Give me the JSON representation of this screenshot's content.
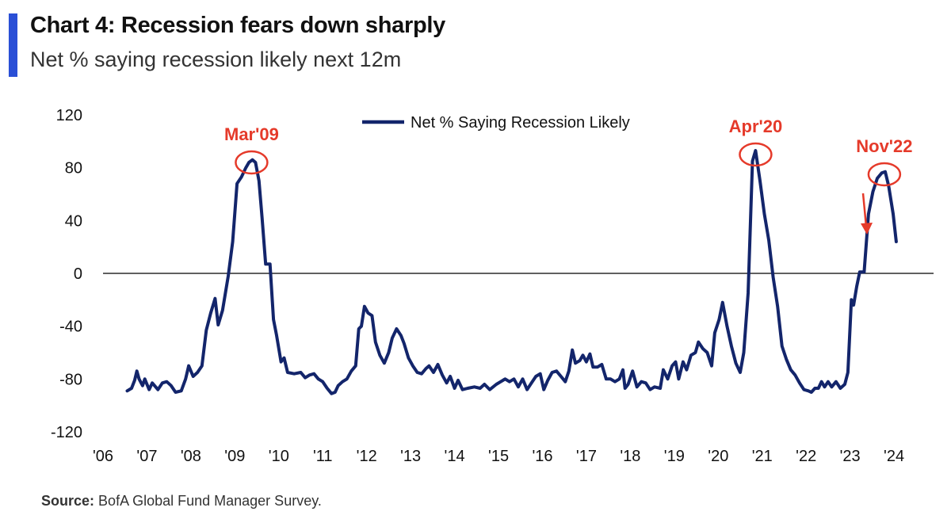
{
  "header": {
    "title": "Chart 4: Recession fears down sharply",
    "subtitle": "Net % saying recession likely next 12m"
  },
  "footer": {
    "source_label": "Source:",
    "source_text": "BofA Global Fund Manager Survey."
  },
  "colors": {
    "accent": "#2a4fd6",
    "series": "#13256b",
    "annotation": "#e53a2a",
    "axis": "#000000"
  },
  "chart_data": {
    "type": "line",
    "title": "Chart 4: Recession fears down sharply",
    "subtitle": "Net % saying recession likely next 12m",
    "xlabel": "",
    "ylabel": "",
    "ylim": [
      -120,
      120
    ],
    "xlim": [
      2006,
      2024.9
    ],
    "yticks": [
      120,
      80,
      40,
      0,
      -40,
      -80,
      -120
    ],
    "xticks": [
      {
        "label": "'06",
        "x": 2006
      },
      {
        "label": "'07",
        "x": 2007
      },
      {
        "label": "'08",
        "x": 2008
      },
      {
        "label": "'09",
        "x": 2009
      },
      {
        "label": "'10",
        "x": 2010
      },
      {
        "label": "'11",
        "x": 2011
      },
      {
        "label": "'12",
        "x": 2012
      },
      {
        "label": "'13",
        "x": 2013
      },
      {
        "label": "'14",
        "x": 2014
      },
      {
        "label": "'15",
        "x": 2015
      },
      {
        "label": "'16",
        "x": 2016
      },
      {
        "label": "'17",
        "x": 2017
      },
      {
        "label": "'18",
        "x": 2018
      },
      {
        "label": "'19",
        "x": 2019
      },
      {
        "label": "'20",
        "x": 2020
      },
      {
        "label": "'21",
        "x": 2021
      },
      {
        "label": "'22",
        "x": 2022
      },
      {
        "label": "'23",
        "x": 2023
      },
      {
        "label": "'24",
        "x": 2024
      }
    ],
    "legend": {
      "position": "top-center",
      "entries": [
        "Net % Saying Recession Likely"
      ]
    },
    "series": [
      {
        "name": "Net % Saying Recession Likely",
        "points": [
          [
            2006.55,
            -89
          ],
          [
            2006.65,
            -87
          ],
          [
            2006.72,
            -81
          ],
          [
            2006.77,
            -74
          ],
          [
            2006.82,
            -80
          ],
          [
            2006.9,
            -85
          ],
          [
            2006.95,
            -80
          ],
          [
            2007.05,
            -88
          ],
          [
            2007.12,
            -83
          ],
          [
            2007.25,
            -88
          ],
          [
            2007.35,
            -83
          ],
          [
            2007.45,
            -82
          ],
          [
            2007.55,
            -85
          ],
          [
            2007.65,
            -90
          ],
          [
            2007.78,
            -89
          ],
          [
            2007.88,
            -80
          ],
          [
            2007.95,
            -70
          ],
          [
            2008.05,
            -78
          ],
          [
            2008.15,
            -75
          ],
          [
            2008.25,
            -70
          ],
          [
            2008.35,
            -43
          ],
          [
            2008.45,
            -30
          ],
          [
            2008.55,
            -19
          ],
          [
            2008.62,
            -39
          ],
          [
            2008.72,
            -28
          ],
          [
            2008.85,
            -2
          ],
          [
            2008.95,
            24
          ],
          [
            2009.05,
            68
          ],
          [
            2009.15,
            73
          ],
          [
            2009.25,
            80
          ],
          [
            2009.32,
            84
          ],
          [
            2009.4,
            86
          ],
          [
            2009.47,
            84
          ],
          [
            2009.55,
            70
          ],
          [
            2009.62,
            42
          ],
          [
            2009.7,
            7
          ],
          [
            2009.8,
            7
          ],
          [
            2009.88,
            -35
          ],
          [
            2009.95,
            -47
          ],
          [
            2010.05,
            -67
          ],
          [
            2010.12,
            -64
          ],
          [
            2010.2,
            -75
          ],
          [
            2010.35,
            -76
          ],
          [
            2010.5,
            -75
          ],
          [
            2010.6,
            -79
          ],
          [
            2010.7,
            -77
          ],
          [
            2010.8,
            -76
          ],
          [
            2010.9,
            -80
          ],
          [
            2011.0,
            -82
          ],
          [
            2011.1,
            -87
          ],
          [
            2011.2,
            -91
          ],
          [
            2011.28,
            -90
          ],
          [
            2011.35,
            -85
          ],
          [
            2011.45,
            -82
          ],
          [
            2011.55,
            -80
          ],
          [
            2011.65,
            -74
          ],
          [
            2011.75,
            -70
          ],
          [
            2011.82,
            -42
          ],
          [
            2011.88,
            -40
          ],
          [
            2011.95,
            -25
          ],
          [
            2012.03,
            -30
          ],
          [
            2012.12,
            -32
          ],
          [
            2012.2,
            -52
          ],
          [
            2012.3,
            -62
          ],
          [
            2012.4,
            -68
          ],
          [
            2012.5,
            -60
          ],
          [
            2012.58,
            -49
          ],
          [
            2012.68,
            -42
          ],
          [
            2012.78,
            -47
          ],
          [
            2012.85,
            -53
          ],
          [
            2012.95,
            -64
          ],
          [
            2013.05,
            -70
          ],
          [
            2013.15,
            -75
          ],
          [
            2013.25,
            -76
          ],
          [
            2013.35,
            -72
          ],
          [
            2013.42,
            -70
          ],
          [
            2013.52,
            -75
          ],
          [
            2013.62,
            -69
          ],
          [
            2013.72,
            -77
          ],
          [
            2013.82,
            -83
          ],
          [
            2013.9,
            -78
          ],
          [
            2014.0,
            -87
          ],
          [
            2014.08,
            -81
          ],
          [
            2014.18,
            -88
          ],
          [
            2014.3,
            -87
          ],
          [
            2014.45,
            -86
          ],
          [
            2014.58,
            -87
          ],
          [
            2014.68,
            -84
          ],
          [
            2014.8,
            -88
          ],
          [
            2014.95,
            -84
          ],
          [
            2015.05,
            -82
          ],
          [
            2015.15,
            -80
          ],
          [
            2015.25,
            -82
          ],
          [
            2015.35,
            -80
          ],
          [
            2015.45,
            -86
          ],
          [
            2015.55,
            -80
          ],
          [
            2015.65,
            -88
          ],
          [
            2015.75,
            -83
          ],
          [
            2015.85,
            -78
          ],
          [
            2015.95,
            -76
          ],
          [
            2016.03,
            -88
          ],
          [
            2016.12,
            -81
          ],
          [
            2016.22,
            -75
          ],
          [
            2016.32,
            -74
          ],
          [
            2016.42,
            -78
          ],
          [
            2016.52,
            -82
          ],
          [
            2016.6,
            -74
          ],
          [
            2016.68,
            -58
          ],
          [
            2016.75,
            -68
          ],
          [
            2016.85,
            -66
          ],
          [
            2016.92,
            -62
          ],
          [
            2017.0,
            -67
          ],
          [
            2017.08,
            -61
          ],
          [
            2017.15,
            -71
          ],
          [
            2017.25,
            -71
          ],
          [
            2017.35,
            -69
          ],
          [
            2017.45,
            -80
          ],
          [
            2017.55,
            -80
          ],
          [
            2017.65,
            -82
          ],
          [
            2017.75,
            -80
          ],
          [
            2017.83,
            -73
          ],
          [
            2017.88,
            -87
          ],
          [
            2017.95,
            -84
          ],
          [
            2018.05,
            -74
          ],
          [
            2018.15,
            -86
          ],
          [
            2018.25,
            -82
          ],
          [
            2018.35,
            -83
          ],
          [
            2018.45,
            -88
          ],
          [
            2018.55,
            -86
          ],
          [
            2018.68,
            -87
          ],
          [
            2018.75,
            -73
          ],
          [
            2018.85,
            -80
          ],
          [
            2018.95,
            -70
          ],
          [
            2019.03,
            -67
          ],
          [
            2019.1,
            -80
          ],
          [
            2019.2,
            -67
          ],
          [
            2019.28,
            -73
          ],
          [
            2019.38,
            -62
          ],
          [
            2019.48,
            -60
          ],
          [
            2019.55,
            -52
          ],
          [
            2019.65,
            -57
          ],
          [
            2019.75,
            -60
          ],
          [
            2019.85,
            -70
          ],
          [
            2019.92,
            -45
          ],
          [
            2020.02,
            -35
          ],
          [
            2020.1,
            -22
          ],
          [
            2020.2,
            -40
          ],
          [
            2020.3,
            -55
          ],
          [
            2020.4,
            -68
          ],
          [
            2020.5,
            -75
          ],
          [
            2020.58,
            -60
          ],
          [
            2020.68,
            -15
          ],
          [
            2020.78,
            85
          ],
          [
            2020.85,
            93
          ],
          [
            2020.95,
            70
          ],
          [
            2021.05,
            45
          ],
          [
            2021.15,
            25
          ],
          [
            2021.25,
            -3
          ],
          [
            2021.35,
            -25
          ],
          [
            2021.45,
            -55
          ],
          [
            2021.55,
            -65
          ],
          [
            2021.65,
            -73
          ],
          [
            2021.75,
            -77
          ],
          [
            2021.85,
            -83
          ],
          [
            2021.95,
            -88
          ],
          [
            2022.05,
            -89
          ],
          [
            2022.12,
            -90
          ],
          [
            2022.2,
            -87
          ],
          [
            2022.28,
            -87
          ],
          [
            2022.35,
            -82
          ],
          [
            2022.42,
            -86
          ],
          [
            2022.5,
            -82
          ],
          [
            2022.58,
            -86
          ],
          [
            2022.68,
            -82
          ],
          [
            2022.78,
            -87
          ],
          [
            2022.88,
            -84
          ],
          [
            2022.95,
            -75
          ],
          [
            2023.03,
            -20
          ],
          [
            2023.08,
            -24
          ],
          [
            2023.15,
            -10
          ],
          [
            2023.22,
            1
          ],
          [
            2023.32,
            1
          ],
          [
            2023.42,
            45
          ],
          [
            2023.52,
            62
          ],
          [
            2023.62,
            72
          ],
          [
            2023.72,
            76
          ],
          [
            2023.8,
            77
          ],
          [
            2023.88,
            66
          ],
          [
            2023.98,
            45
          ],
          [
            2024.05,
            24
          ]
        ]
      }
    ],
    "annotations": [
      {
        "label": "Mar'09",
        "x": 2009.38,
        "y": 84
      },
      {
        "label": "Apr'20",
        "x": 2020.85,
        "y": 90
      },
      {
        "label": "Nov'22",
        "x": 2023.78,
        "y": 75
      }
    ],
    "arrow": {
      "direction": "down",
      "note": "red arrow right of latest value"
    },
    "zero_line": true,
    "grid": false
  }
}
